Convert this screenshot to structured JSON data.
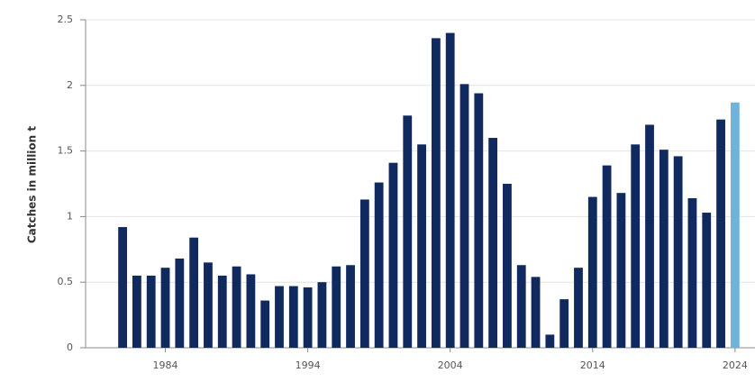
{
  "chart_data": {
    "type": "bar",
    "y_label": "Catches in million t",
    "x": [
      1981,
      1982,
      1983,
      1984,
      1985,
      1986,
      1987,
      1988,
      1989,
      1990,
      1991,
      1992,
      1993,
      1994,
      1995,
      1996,
      1997,
      1998,
      1999,
      2000,
      2001,
      2002,
      2003,
      2004,
      2005,
      2006,
      2007,
      2008,
      2009,
      2010,
      2011,
      2012,
      2013,
      2014,
      2015,
      2016,
      2017,
      2018,
      2019,
      2020,
      2021,
      2022,
      2023,
      2024
    ],
    "values": [
      0.92,
      0.55,
      0.55,
      0.61,
      0.68,
      0.84,
      0.65,
      0.55,
      0.62,
      0.56,
      0.36,
      0.47,
      0.47,
      0.46,
      0.5,
      0.62,
      0.63,
      1.13,
      1.26,
      1.41,
      1.77,
      1.55,
      2.36,
      2.4,
      2.01,
      1.94,
      1.6,
      1.25,
      0.63,
      0.54,
      0.1,
      0.37,
      0.61,
      1.15,
      1.39,
      1.18,
      1.55,
      1.7,
      1.51,
      1.46,
      1.14,
      1.03,
      1.74,
      1.87
    ],
    "colors": [
      "#10295e",
      "#10295e",
      "#10295e",
      "#10295e",
      "#10295e",
      "#10295e",
      "#10295e",
      "#10295e",
      "#10295e",
      "#10295e",
      "#10295e",
      "#10295e",
      "#10295e",
      "#10295e",
      "#10295e",
      "#10295e",
      "#10295e",
      "#10295e",
      "#10295e",
      "#10295e",
      "#10295e",
      "#10295e",
      "#10295e",
      "#10295e",
      "#10295e",
      "#10295e",
      "#10295e",
      "#10295e",
      "#10295e",
      "#10295e",
      "#10295e",
      "#10295e",
      "#10295e",
      "#10295e",
      "#10295e",
      "#10295e",
      "#10295e",
      "#10295e",
      "#10295e",
      "#10295e",
      "#10295e",
      "#10295e",
      "#10295e",
      "#6cb4dc"
    ],
    "xlim": [
      1978.4,
      2025.4
    ],
    "xticks": [
      1984,
      1994,
      2004,
      2014,
      2024
    ],
    "ylim": [
      0,
      2.5
    ],
    "yticks": [
      0,
      0.5,
      1,
      1.5,
      2,
      2.5
    ],
    "grid": true
  }
}
